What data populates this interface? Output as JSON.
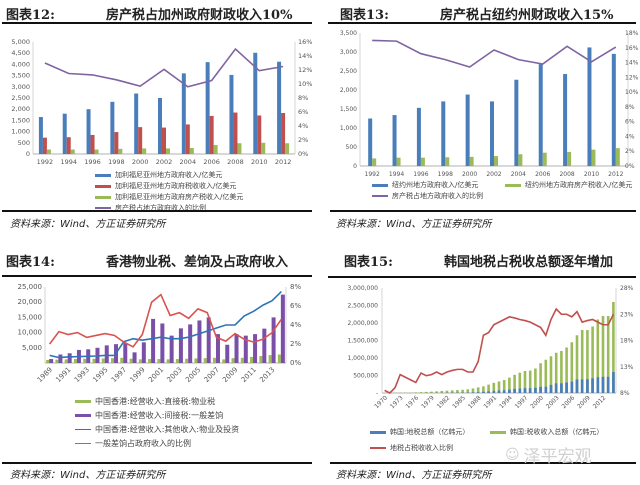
{
  "source_text": "资料来源：Wind、方正证券研究所",
  "watermark": "泽平宏观",
  "chart_data": [
    {
      "type": "bar+line",
      "number": "图表12:",
      "title": "房产税占加州政府财政收入10%",
      "categories": [
        "1992",
        "1994",
        "1996",
        "1998",
        "2000",
        "2002",
        "2004",
        "2006",
        "2008",
        "2010",
        "2012"
      ],
      "ylim": [
        0,
        5000
      ],
      "y_ticks": [
        "0",
        "500",
        "1,000",
        "1,500",
        "2,000",
        "2,500",
        "3,000",
        "3,500",
        "4,000",
        "4,500",
        "5,000"
      ],
      "y2lim": [
        0,
        16
      ],
      "y2_ticks": [
        "0%",
        "2%",
        "4%",
        "6%",
        "8%",
        "10%",
        "12%",
        "14%",
        "16%"
      ],
      "series": [
        {
          "name": "加利福尼亚州地方政府收入/亿美元",
          "kind": "bar",
          "axis": "left",
          "color": "#4a7ebb",
          "values": [
            1650,
            1800,
            2000,
            2330,
            2700,
            2500,
            3600,
            4100,
            3530,
            4520,
            4120
          ]
        },
        {
          "name": "加利福尼亚州地方政府税收收入/亿美元",
          "kind": "bar",
          "axis": "left",
          "color": "#c0504d",
          "values": [
            730,
            750,
            850,
            980,
            1200,
            1180,
            1320,
            1700,
            1850,
            1720,
            1830
          ]
        },
        {
          "name": "加利福尼亚州地方政府房产税收入/亿美元",
          "kind": "bar",
          "axis": "left",
          "color": "#9bbb59",
          "values": [
            200,
            200,
            200,
            230,
            250,
            250,
            270,
            400,
            480,
            500,
            480
          ]
        },
        {
          "name": "房产税占地方政府收入的比例",
          "kind": "line",
          "axis": "right",
          "color": "#8064a2",
          "values": [
            13.0,
            11.5,
            11.3,
            10.6,
            9.7,
            12.1,
            9.6,
            10.5,
            15.0,
            11.9,
            12.5
          ]
        }
      ],
      "legend": "bottom"
    },
    {
      "type": "bar+line",
      "number": "图表13:",
      "title": "房产税占纽约州财政收入15%",
      "categories": [
        "1992",
        "1994",
        "1996",
        "1998",
        "2000",
        "2002",
        "2004",
        "2006",
        "2008",
        "2010",
        "2012"
      ],
      "ylim": [
        0,
        3500
      ],
      "y_ticks": [
        "0",
        "500",
        "1,000",
        "1,500",
        "2,000",
        "2,500",
        "3,000",
        "3,500"
      ],
      "y2lim": [
        0,
        18
      ],
      "y2_ticks": [
        "0%",
        "2%",
        "4%",
        "6%",
        "8%",
        "10%",
        "12%",
        "14%",
        "16%",
        "18%"
      ],
      "series": [
        {
          "name": "纽约州地方政府收入/亿美元",
          "kind": "bar",
          "axis": "left",
          "color": "#4a7ebb",
          "values": [
            1250,
            1340,
            1530,
            1700,
            1880,
            1700,
            2270,
            2680,
            2420,
            3120,
            2950
          ]
        },
        {
          "name": "纽约州地方政府房产税收入/亿美元",
          "kind": "bar",
          "axis": "left",
          "color": "#9bbb59",
          "values": [
            200,
            220,
            220,
            230,
            240,
            260,
            310,
            350,
            370,
            430,
            470
          ]
        },
        {
          "name": "房产税占地方政府收入的比例",
          "kind": "line",
          "axis": "right",
          "color": "#8064a2",
          "values": [
            17.0,
            16.9,
            15.2,
            14.4,
            13.4,
            15.7,
            14.4,
            13.8,
            16.2,
            14.1,
            16.1
          ]
        }
      ],
      "legend": "bottom"
    },
    {
      "type": "bar+line",
      "number": "图表14:",
      "title": "香港物业税、差饷及占政府收入",
      "categories": [
        "1989",
        "1990",
        "1991",
        "1992",
        "1993",
        "1994",
        "1995",
        "1996",
        "1997",
        "1998",
        "1999",
        "2000",
        "2001",
        "2002",
        "2003",
        "2004",
        "2005",
        "2006",
        "2007",
        "2008",
        "2009",
        "2010",
        "2011",
        "2012",
        "2013",
        "2014"
      ],
      "x_tick_labels": [
        "1989",
        "1991",
        "1993",
        "1995",
        "1997",
        "1999",
        "2001",
        "2003",
        "2005",
        "2007",
        "2009",
        "2011",
        "2013"
      ],
      "ylim": [
        0,
        25000
      ],
      "y_ticks": [
        "",
        "5,000",
        "10,000",
        "15,000",
        "20,000",
        "25,000"
      ],
      "y2lim": [
        0,
        8
      ],
      "y2_ticks": [
        "0%",
        "2%",
        "4%",
        "6%",
        "8%"
      ],
      "series": [
        {
          "name": "中国香港:经营收入:直接税:物业税",
          "kind": "bar",
          "axis": "left",
          "color": "#9bbb59",
          "values": [
            1000,
            1100,
            1200,
            1300,
            1400,
            1400,
            1500,
            1600,
            1700,
            1400,
            1200,
            1300,
            1300,
            1200,
            1300,
            1400,
            1500,
            1600,
            1700,
            1200,
            1600,
            1700,
            2000,
            2300,
            2600,
            2800
          ]
        },
        {
          "name": "中国香港:经营收入:间接税:一般差饷",
          "kind": "bar",
          "axis": "left",
          "color": "#7a4fa8",
          "values": [
            1300,
            2800,
            3200,
            4300,
            4500,
            5000,
            5800,
            6200,
            6500,
            3500,
            6800,
            14500,
            13000,
            9000,
            11400,
            12700,
            14000,
            15000,
            9500,
            6000,
            9500,
            9000,
            9500,
            11300,
            15000,
            22500
          ]
        },
        {
          "name": "中国香港:经营收入:其他收入:物业及投资",
          "kind": "line",
          "axis": "left",
          "color": "#2e75b6",
          "values": [
            2500,
            1800,
            2000,
            2100,
            2200,
            2300,
            2500,
            2500,
            7000,
            8000,
            7500,
            8000,
            8500,
            8000,
            8000,
            8500,
            9500,
            10500,
            11500,
            12500,
            12500,
            15500,
            17000,
            19000,
            20500,
            23500
          ]
        },
        {
          "name": "一般差饷占政府收入的比例",
          "kind": "line",
          "axis": "right",
          "color": "#d9534f",
          "values": [
            2.0,
            3.3,
            3.0,
            3.2,
            2.7,
            2.9,
            3.1,
            2.9,
            2.2,
            1.7,
            3.0,
            6.4,
            7.2,
            5.0,
            5.3,
            4.7,
            5.7,
            5.3,
            2.7,
            2.3,
            3.1,
            2.5,
            2.2,
            2.5,
            3.2,
            4.6
          ]
        }
      ],
      "legend": "bottom"
    },
    {
      "type": "bar+line",
      "number": "图表15:",
      "title": "韩国地税占税收总额逐年增加",
      "categories": [
        "1970",
        "1971",
        "1972",
        "1973",
        "1974",
        "1975",
        "1976",
        "1977",
        "1978",
        "1979",
        "1980",
        "1981",
        "1982",
        "1983",
        "1984",
        "1985",
        "1986",
        "1987",
        "1988",
        "1989",
        "1990",
        "1991",
        "1992",
        "1993",
        "1994",
        "1995",
        "1996",
        "1997",
        "1998",
        "1999",
        "2000",
        "2001",
        "2002",
        "2003",
        "2004",
        "2005",
        "2006",
        "2007",
        "2008",
        "2009",
        "2010",
        "2011",
        "2012",
        "2013",
        "2014"
      ],
      "x_tick_labels": [
        "1970",
        "1973",
        "1976",
        "1979",
        "1982",
        "1985",
        "1988",
        "1991",
        "1994",
        "1997",
        "2000",
        "2003",
        "2006",
        "2009",
        "2012"
      ],
      "ylim": [
        0,
        3000000
      ],
      "y_ticks": [
        "-",
        "500,000",
        "1,000,000",
        "1,500,000",
        "2,000,000",
        "2,500,000",
        "3,000,000"
      ],
      "y2lim": [
        8,
        28
      ],
      "y2_ticks": [
        "8%",
        "13%",
        "18%",
        "23%",
        "28%"
      ],
      "series": [
        {
          "name": "韩国:地税总额（亿韩元）",
          "kind": "bar",
          "axis": "left",
          "color": "#4a7ebb",
          "values": [
            340,
            400,
            500,
            800,
            1100,
            1500,
            1900,
            2800,
            3500,
            4400,
            5800,
            6700,
            8000,
            9500,
            10600,
            11600,
            12700,
            15600,
            22400,
            36100,
            46800,
            60900,
            71000,
            81400,
            99000,
            116000,
            128000,
            137000,
            138000,
            147000,
            174000,
            180000,
            231000,
            276000,
            276000,
            299000,
            326000,
            388000,
            387000,
            392000,
            418000,
            452000,
            462000,
            462000,
            598000
          ]
        },
        {
          "name": "韩国:税收收入总额（亿韩元）",
          "kind": "bar",
          "axis": "left",
          "color": "#9bbb59",
          "values": [
            4000,
            5000,
            5500,
            7000,
            10000,
            14000,
            19000,
            24000,
            31000,
            38000,
            48000,
            58000,
            67000,
            77000,
            85000,
            93000,
            106000,
            130000,
            160000,
            190000,
            240000,
            290000,
            330000,
            370000,
            440000,
            520000,
            580000,
            630000,
            640000,
            700000,
            850000,
            950000,
            1050000,
            1150000,
            1200000,
            1300000,
            1450000,
            1650000,
            1800000,
            1800000,
            1900000,
            2100000,
            2200000,
            2200000,
            2600000
          ]
        },
        {
          "name": "地税占税收收入比例",
          "kind": "line",
          "axis": "right",
          "color": "#c0504d",
          "values": [
            8.5,
            8.0,
            9.0,
            11.5,
            11.0,
            10.5,
            10.0,
            11.8,
            11.3,
            11.5,
            12.0,
            11.5,
            12.0,
            12.3,
            12.5,
            12.5,
            12.0,
            12.0,
            14.0,
            19.0,
            19.5,
            21.0,
            21.5,
            22.0,
            22.5,
            22.3,
            22.0,
            21.8,
            21.5,
            21.0,
            20.5,
            19.0,
            22.0,
            24.0,
            23.0,
            23.0,
            22.5,
            23.5,
            21.5,
            21.8,
            22.0,
            21.5,
            21.0,
            21.0,
            23.0
          ]
        }
      ],
      "legend": "bottom"
    }
  ]
}
